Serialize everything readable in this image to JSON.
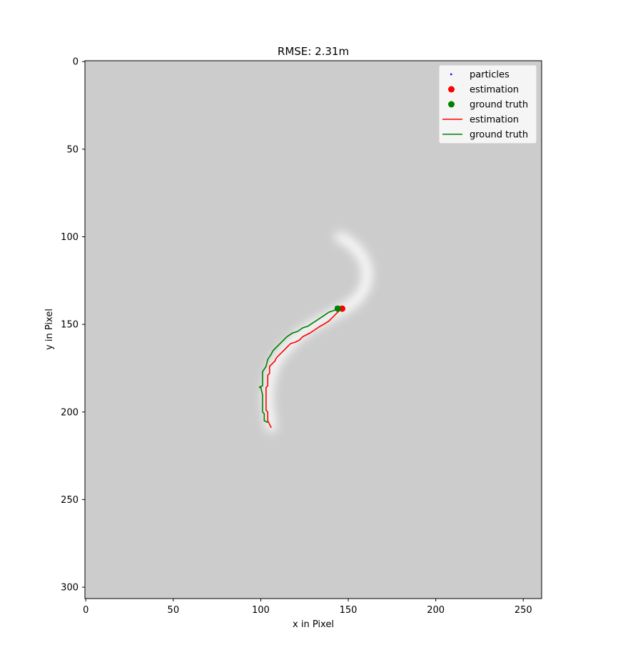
{
  "chart_data": {
    "type": "scatter",
    "title": "RMSE: 2.31m",
    "xlabel": "x in Pixel",
    "ylabel": "y in Pixel",
    "xlim": [
      -0.5,
      260.5
    ],
    "ylim": [
      306.5,
      -0.5
    ],
    "y_axis_inverted": true,
    "background": "#cccccc",
    "grid": false,
    "xticks": [
      0,
      50,
      100,
      150,
      200,
      250
    ],
    "yticks": [
      0,
      50,
      100,
      150,
      200,
      250,
      300
    ],
    "legend": {
      "placement": "upper-right",
      "entries": [
        {
          "label": "particles",
          "kind": "marker",
          "color": "#0000ff"
        },
        {
          "label": "estimation",
          "kind": "marker",
          "color": "#ff0000"
        },
        {
          "label": "ground truth",
          "kind": "marker",
          "color": "#008000"
        },
        {
          "label": "estimation",
          "kind": "line",
          "color": "#ff0000"
        },
        {
          "label": "ground truth",
          "kind": "line",
          "color": "#008000"
        }
      ]
    },
    "particle_density_path": {
      "color": "#ffffff",
      "points": [
        [
          106,
          209
        ],
        [
          105,
          203
        ],
        [
          104,
          196
        ],
        [
          104,
          188
        ],
        [
          106,
          177
        ],
        [
          110,
          169
        ],
        [
          115,
          163
        ],
        [
          121,
          157
        ],
        [
          128,
          152
        ],
        [
          135,
          148
        ],
        [
          142,
          144
        ],
        [
          148,
          141
        ],
        [
          155,
          136
        ],
        [
          160,
          128
        ],
        [
          161,
          119
        ],
        [
          158,
          111
        ],
        [
          152,
          104
        ],
        [
          145,
          100
        ]
      ]
    },
    "series": [
      {
        "name": "estimation",
        "type": "line",
        "color": "#ff0000",
        "points": [
          [
            106,
            209
          ],
          [
            104,
            205
          ],
          [
            104,
            200
          ],
          [
            103,
            199
          ],
          [
            103,
            194
          ],
          [
            103,
            186
          ],
          [
            104,
            185
          ],
          [
            104,
            179
          ],
          [
            105,
            178
          ],
          [
            105,
            174
          ],
          [
            106,
            173
          ],
          [
            108,
            171
          ],
          [
            109,
            169
          ],
          [
            111,
            167
          ],
          [
            113,
            165
          ],
          [
            115,
            163
          ],
          [
            117,
            161
          ],
          [
            120,
            160
          ],
          [
            122,
            159
          ],
          [
            124,
            157
          ],
          [
            126,
            156
          ],
          [
            128,
            155
          ],
          [
            131,
            153
          ],
          [
            134,
            151
          ],
          [
            136,
            150
          ],
          [
            139,
            148
          ],
          [
            141,
            146
          ],
          [
            143,
            144
          ],
          [
            145,
            142
          ],
          [
            146,
            141
          ]
        ]
      },
      {
        "name": "ground truth",
        "type": "line",
        "color": "#008000",
        "points": [
          [
            104,
            206
          ],
          [
            102,
            205
          ],
          [
            102,
            201
          ],
          [
            101,
            200
          ],
          [
            101,
            195
          ],
          [
            101,
            190
          ],
          [
            100,
            186
          ],
          [
            99,
            186
          ],
          [
            101,
            185
          ],
          [
            101,
            177
          ],
          [
            103,
            174
          ],
          [
            104,
            170
          ],
          [
            106,
            167
          ],
          [
            107,
            165
          ],
          [
            109,
            163
          ],
          [
            111,
            161
          ],
          [
            113,
            159
          ],
          [
            115,
            157
          ],
          [
            118,
            155
          ],
          [
            121,
            154
          ],
          [
            124,
            152
          ],
          [
            127,
            151
          ],
          [
            130,
            149
          ],
          [
            133,
            147
          ],
          [
            136,
            145
          ],
          [
            139,
            143
          ],
          [
            142,
            142
          ],
          [
            144,
            141
          ]
        ]
      },
      {
        "name": "particles",
        "type": "scatter",
        "color": "#0000ff",
        "points": [
          [
            143,
            140
          ],
          [
            145,
            141
          ],
          [
            146,
            142
          ],
          [
            144,
            142
          ],
          [
            147,
            141
          ]
        ]
      },
      {
        "name": "estimation",
        "type": "scatter",
        "color": "#ff0000",
        "points": [
          [
            146.5,
            141
          ]
        ]
      },
      {
        "name": "ground truth",
        "type": "scatter",
        "color": "#008000",
        "points": [
          [
            144,
            141
          ]
        ]
      }
    ]
  }
}
